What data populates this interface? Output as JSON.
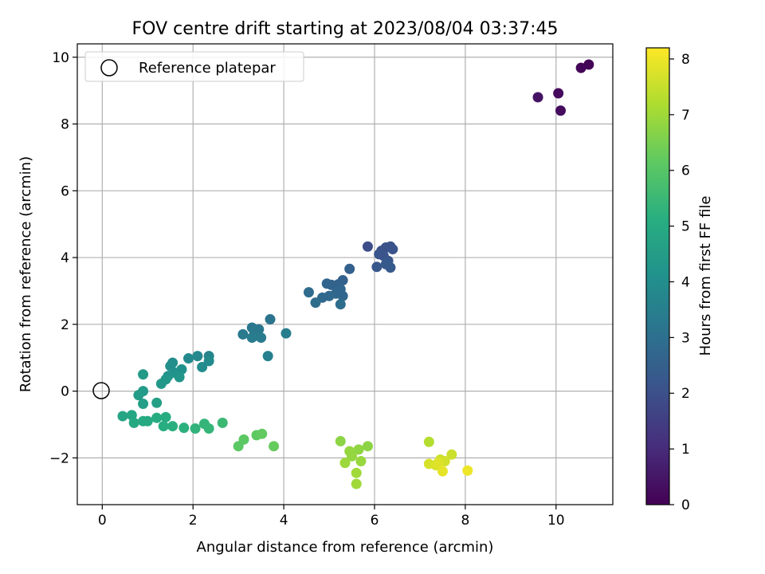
{
  "chart_data": {
    "type": "scatter",
    "title": "FOV centre drift starting at 2023/08/04 03:37:45",
    "xlabel": "Angular distance from reference (arcmin)",
    "ylabel": "Rotation from reference (arcmin)",
    "xlim": [
      -0.55,
      11.25
    ],
    "ylim": [
      -3.4,
      10.4
    ],
    "xticks": [
      "0",
      "2",
      "4",
      "6",
      "8",
      "10"
    ],
    "yticks": [
      "−2",
      "0",
      "2",
      "4",
      "6",
      "8",
      "10"
    ],
    "grid": true,
    "legend": {
      "position": "top-left",
      "entries": [
        "Reference platepar"
      ]
    },
    "reference_point": {
      "x": 0,
      "y": 0
    },
    "colorbar": {
      "label": "Hours from first FF file",
      "range": [
        0,
        8.2
      ],
      "ticks": [
        "0",
        "1",
        "2",
        "3",
        "4",
        "5",
        "6",
        "7",
        "8"
      ],
      "colormap": "viridis"
    },
    "points": [
      {
        "x": 10.72,
        "y": 9.78,
        "c": 0.08
      },
      {
        "x": 10.55,
        "y": 9.68,
        "c": 0.12
      },
      {
        "x": 10.05,
        "y": 8.92,
        "c": 0.2
      },
      {
        "x": 10.1,
        "y": 8.4,
        "c": 0.25
      },
      {
        "x": 9.6,
        "y": 8.8,
        "c": 0.4
      },
      {
        "x": 5.85,
        "y": 4.33,
        "c": 1.9
      },
      {
        "x": 6.15,
        "y": 4.2,
        "c": 2.0
      },
      {
        "x": 6.25,
        "y": 4.3,
        "c": 2.05
      },
      {
        "x": 6.35,
        "y": 4.33,
        "c": 2.1
      },
      {
        "x": 6.4,
        "y": 4.25,
        "c": 2.1
      },
      {
        "x": 6.2,
        "y": 4.05,
        "c": 2.15
      },
      {
        "x": 6.1,
        "y": 4.1,
        "c": 2.15
      },
      {
        "x": 6.3,
        "y": 3.9,
        "c": 2.2
      },
      {
        "x": 6.05,
        "y": 3.72,
        "c": 2.25
      },
      {
        "x": 6.35,
        "y": 3.7,
        "c": 2.3
      },
      {
        "x": 6.25,
        "y": 3.8,
        "c": 2.3
      },
      {
        "x": 5.45,
        "y": 3.66,
        "c": 2.5
      },
      {
        "x": 5.3,
        "y": 3.32,
        "c": 2.55
      },
      {
        "x": 5.2,
        "y": 3.2,
        "c": 2.6
      },
      {
        "x": 5.05,
        "y": 3.18,
        "c": 2.6
      },
      {
        "x": 4.95,
        "y": 3.22,
        "c": 2.65
      },
      {
        "x": 5.25,
        "y": 3.05,
        "c": 2.65
      },
      {
        "x": 5.15,
        "y": 2.92,
        "c": 2.7
      },
      {
        "x": 5.3,
        "y": 2.85,
        "c": 2.7
      },
      {
        "x": 5.0,
        "y": 2.85,
        "c": 2.75
      },
      {
        "x": 4.85,
        "y": 2.8,
        "c": 2.8
      },
      {
        "x": 4.55,
        "y": 2.96,
        "c": 2.85
      },
      {
        "x": 4.7,
        "y": 2.65,
        "c": 2.9
      },
      {
        "x": 5.25,
        "y": 2.6,
        "c": 2.9
      },
      {
        "x": 3.7,
        "y": 2.15,
        "c": 3.1
      },
      {
        "x": 3.3,
        "y": 1.9,
        "c": 3.2
      },
      {
        "x": 3.45,
        "y": 1.85,
        "c": 3.25
      },
      {
        "x": 3.35,
        "y": 1.8,
        "c": 3.3
      },
      {
        "x": 3.1,
        "y": 1.7,
        "c": 3.3
      },
      {
        "x": 3.35,
        "y": 1.65,
        "c": 3.35
      },
      {
        "x": 3.3,
        "y": 1.6,
        "c": 3.4
      },
      {
        "x": 3.5,
        "y": 1.6,
        "c": 3.4
      },
      {
        "x": 4.05,
        "y": 1.73,
        "c": 3.45
      },
      {
        "x": 3.65,
        "y": 1.05,
        "c": 3.55
      },
      {
        "x": 2.35,
        "y": 1.05,
        "c": 3.7
      },
      {
        "x": 2.1,
        "y": 1.05,
        "c": 3.8
      },
      {
        "x": 1.9,
        "y": 0.98,
        "c": 3.85
      },
      {
        "x": 2.35,
        "y": 0.9,
        "c": 3.9
      },
      {
        "x": 2.2,
        "y": 0.72,
        "c": 3.95
      },
      {
        "x": 1.55,
        "y": 0.85,
        "c": 4.0
      },
      {
        "x": 1.5,
        "y": 0.75,
        "c": 4.05
      },
      {
        "x": 1.75,
        "y": 0.65,
        "c": 4.1
      },
      {
        "x": 1.6,
        "y": 0.55,
        "c": 4.15
      },
      {
        "x": 1.45,
        "y": 0.45,
        "c": 4.2
      },
      {
        "x": 1.7,
        "y": 0.42,
        "c": 4.25
      },
      {
        "x": 1.4,
        "y": 0.35,
        "c": 4.3
      },
      {
        "x": 1.3,
        "y": 0.22,
        "c": 4.35
      },
      {
        "x": 0.9,
        "y": 0.5,
        "c": 4.4
      },
      {
        "x": 0.9,
        "y": 0.0,
        "c": 4.45
      },
      {
        "x": 0.8,
        "y": -0.12,
        "c": 4.5
      },
      {
        "x": 0.9,
        "y": -0.38,
        "c": 4.55
      },
      {
        "x": 1.2,
        "y": -0.35,
        "c": 4.6
      },
      {
        "x": 0.45,
        "y": -0.75,
        "c": 4.8
      },
      {
        "x": 0.65,
        "y": -0.72,
        "c": 4.85
      },
      {
        "x": 0.7,
        "y": -0.95,
        "c": 4.9
      },
      {
        "x": 0.9,
        "y": -0.9,
        "c": 4.95
      },
      {
        "x": 1.0,
        "y": -0.9,
        "c": 5.0
      },
      {
        "x": 1.2,
        "y": -0.8,
        "c": 5.05
      },
      {
        "x": 1.4,
        "y": -0.78,
        "c": 5.05
      },
      {
        "x": 1.35,
        "y": -1.05,
        "c": 5.1
      },
      {
        "x": 1.55,
        "y": -1.05,
        "c": 5.15
      },
      {
        "x": 1.8,
        "y": -1.1,
        "c": 5.2
      },
      {
        "x": 2.05,
        "y": -1.12,
        "c": 5.3
      },
      {
        "x": 2.25,
        "y": -0.98,
        "c": 5.35
      },
      {
        "x": 2.35,
        "y": -1.12,
        "c": 5.4
      },
      {
        "x": 2.65,
        "y": -0.95,
        "c": 5.5
      },
      {
        "x": 3.0,
        "y": -1.65,
        "c": 6.1
      },
      {
        "x": 3.12,
        "y": -1.45,
        "c": 6.1
      },
      {
        "x": 3.4,
        "y": -1.32,
        "c": 6.15
      },
      {
        "x": 3.52,
        "y": -1.28,
        "c": 6.2
      },
      {
        "x": 3.78,
        "y": -1.65,
        "c": 6.25
      },
      {
        "x": 5.25,
        "y": -1.5,
        "c": 6.75
      },
      {
        "x": 5.85,
        "y": -1.65,
        "c": 6.75
      },
      {
        "x": 5.65,
        "y": -1.75,
        "c": 6.8
      },
      {
        "x": 5.45,
        "y": -1.8,
        "c": 6.85
      },
      {
        "x": 5.5,
        "y": -1.95,
        "c": 6.85
      },
      {
        "x": 5.7,
        "y": -2.1,
        "c": 6.9
      },
      {
        "x": 5.35,
        "y": -2.15,
        "c": 6.95
      },
      {
        "x": 5.6,
        "y": -2.45,
        "c": 7.0
      },
      {
        "x": 5.6,
        "y": -2.78,
        "c": 7.0
      },
      {
        "x": 7.2,
        "y": -1.52,
        "c": 7.25
      },
      {
        "x": 7.7,
        "y": -1.9,
        "c": 7.55
      },
      {
        "x": 7.45,
        "y": -2.05,
        "c": 7.6
      },
      {
        "x": 7.55,
        "y": -2.1,
        "c": 7.65
      },
      {
        "x": 7.2,
        "y": -2.18,
        "c": 7.7
      },
      {
        "x": 7.35,
        "y": -2.22,
        "c": 7.75
      },
      {
        "x": 7.4,
        "y": -2.15,
        "c": 7.8
      },
      {
        "x": 7.5,
        "y": -2.4,
        "c": 7.9
      },
      {
        "x": 8.05,
        "y": -2.38,
        "c": 8.0
      }
    ]
  }
}
